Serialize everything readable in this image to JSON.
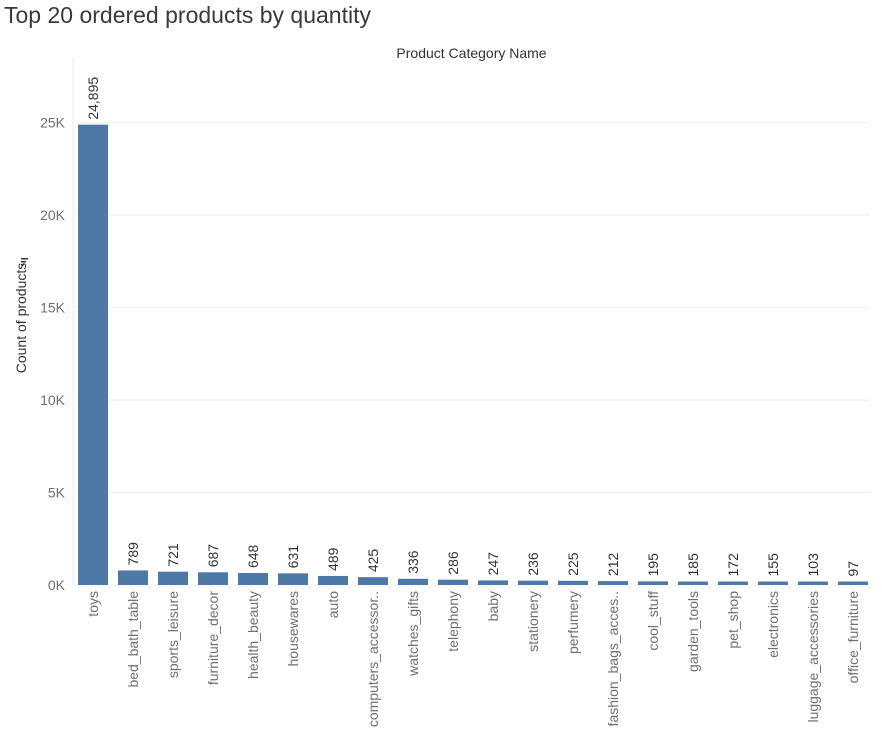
{
  "page": {
    "title": "Top 20 ordered products by quantity"
  },
  "colors": {
    "bar": "#4e79a7",
    "text": "#333333",
    "tick": "#6f6f6f",
    "grid": "#eeeeee"
  },
  "chart_data": {
    "type": "bar",
    "title": "Top 20 ordered products by quantity",
    "column_header": "Product Category Name",
    "xlabel": "",
    "ylabel": "Count of products",
    "ylim": [
      0,
      28500
    ],
    "y_ticks": [
      0,
      5000,
      10000,
      15000,
      20000,
      25000
    ],
    "y_tick_labels": [
      "0K",
      "5K",
      "10K",
      "15K",
      "20K",
      "25K"
    ],
    "grid": true,
    "categories": [
      "toys",
      "bed_bath_table",
      "sports_leisure",
      "furniture_decor",
      "health_beauty",
      "housewares",
      "auto",
      "computers_accessor..",
      "watches_gifts",
      "telephony",
      "baby",
      "stationery",
      "perfumery",
      "fashion_bags_acces..",
      "cool_stuff",
      "garden_tools",
      "pet_shop",
      "electronics",
      "luggage_accessories",
      "office_furniture"
    ],
    "values": [
      24895,
      789,
      721,
      687,
      648,
      631,
      489,
      425,
      336,
      286,
      247,
      236,
      225,
      212,
      195,
      185,
      172,
      155,
      103,
      97
    ],
    "value_labels": [
      "24,895",
      "789",
      "721",
      "687",
      "648",
      "631",
      "489",
      "425",
      "336",
      "286",
      "247",
      "236",
      "225",
      "212",
      "195",
      "185",
      "172",
      "155",
      "103",
      "97"
    ]
  }
}
